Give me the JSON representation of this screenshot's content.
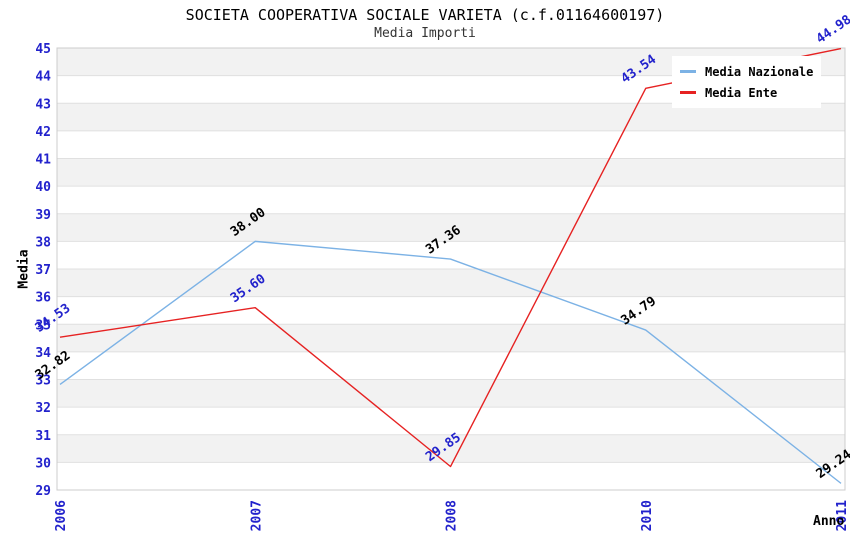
{
  "header": {
    "title": "SOCIETA COOPERATIVA SOCIALE VARIETA (c.f.01164600197)",
    "subtitle": "Media Importi"
  },
  "legend": {
    "position": "top-right",
    "items": [
      {
        "label": "Media Nazionale",
        "color": "#7cb2e5"
      },
      {
        "label": "Media Ente",
        "color": "#e62222"
      }
    ]
  },
  "chart_data": {
    "type": "line",
    "title": "SOCIETA COOPERATIVA SOCIALE VARIETA (c.f.01164600197)",
    "subtitle": "Media Importi",
    "xlabel": "Anno",
    "ylabel": "Media",
    "categories": [
      "2006",
      "2007",
      "2008",
      "2010",
      "2011"
    ],
    "series": [
      {
        "name": "Media Nazionale",
        "color": "#7cb2e5",
        "label_color": "#000000",
        "values": [
          32.82,
          38.0,
          37.36,
          34.79,
          29.24
        ]
      },
      {
        "name": "Media Ente",
        "color": "#e62222",
        "label_color": "#2222cc",
        "values": [
          34.53,
          35.6,
          29.85,
          43.54,
          44.98
        ]
      }
    ],
    "ylim": [
      29,
      45
    ],
    "ytick_step": 1,
    "grid": "horizontal-bands",
    "legend_position": "top-right",
    "colors": {
      "tick_label": "#2222cc",
      "band_gray": "#f2f2f2",
      "band_white": "#ffffff",
      "gridline": "#e0e0e0",
      "plot_border": "#cccccc"
    }
  }
}
